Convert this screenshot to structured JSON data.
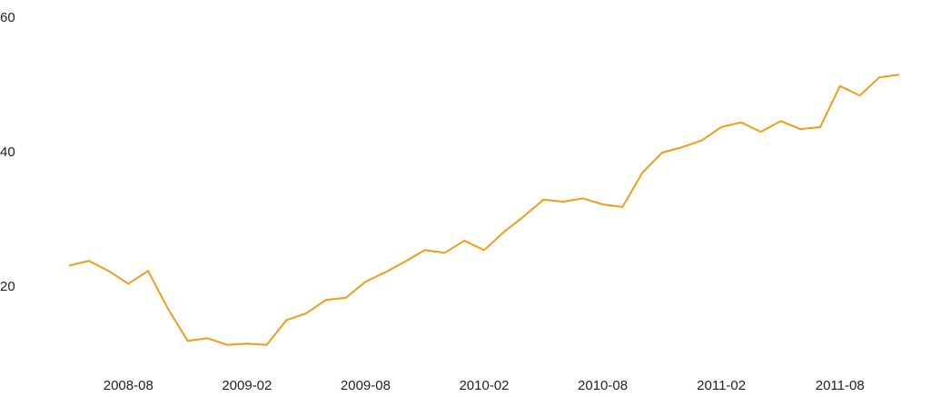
{
  "chart_data": {
    "type": "line",
    "x": [
      "2008-05",
      "2008-06",
      "2008-07",
      "2008-08",
      "2008-09",
      "2008-10",
      "2008-11",
      "2008-12",
      "2009-01",
      "2009-02",
      "2009-03",
      "2009-04",
      "2009-05",
      "2009-06",
      "2009-07",
      "2009-08",
      "2009-09",
      "2009-10",
      "2009-11",
      "2009-12",
      "2010-01",
      "2010-02",
      "2010-03",
      "2010-04",
      "2010-05",
      "2010-06",
      "2010-07",
      "2010-08",
      "2010-09",
      "2010-10",
      "2010-11",
      "2010-12",
      "2011-01",
      "2011-02",
      "2011-03",
      "2011-04",
      "2011-05",
      "2011-06",
      "2011-07",
      "2011-08",
      "2011-09",
      "2011-10",
      "2011-11"
    ],
    "series": [
      {
        "color": "#f39c1c",
        "values": [
          23.2,
          23.9,
          22.4,
          20.5,
          22.4,
          16.8,
          12.0,
          12.4,
          11.4,
          11.6,
          11.4,
          15.1,
          16.1,
          18.1,
          18.4,
          20.8,
          22.2,
          23.8,
          25.5,
          25.1,
          26.9,
          25.5,
          28.2,
          30.5,
          33.0,
          32.7,
          33.2,
          32.3,
          31.9,
          37.0,
          40.0,
          40.8,
          41.8,
          43.8,
          44.5,
          43.1,
          44.7,
          43.5,
          43.8,
          49.9,
          48.5,
          51.2,
          51.6
        ]
      }
    ],
    "xlim": [
      "2008-05",
      "2011-11"
    ],
    "xticks": [
      "2008-08",
      "2009-02",
      "2009-08",
      "2010-02",
      "2010-08",
      "2011-02",
      "2011-08"
    ],
    "ylim": [
      9,
      60
    ],
    "yticks": [
      20,
      40,
      60
    ],
    "grid": false
  }
}
